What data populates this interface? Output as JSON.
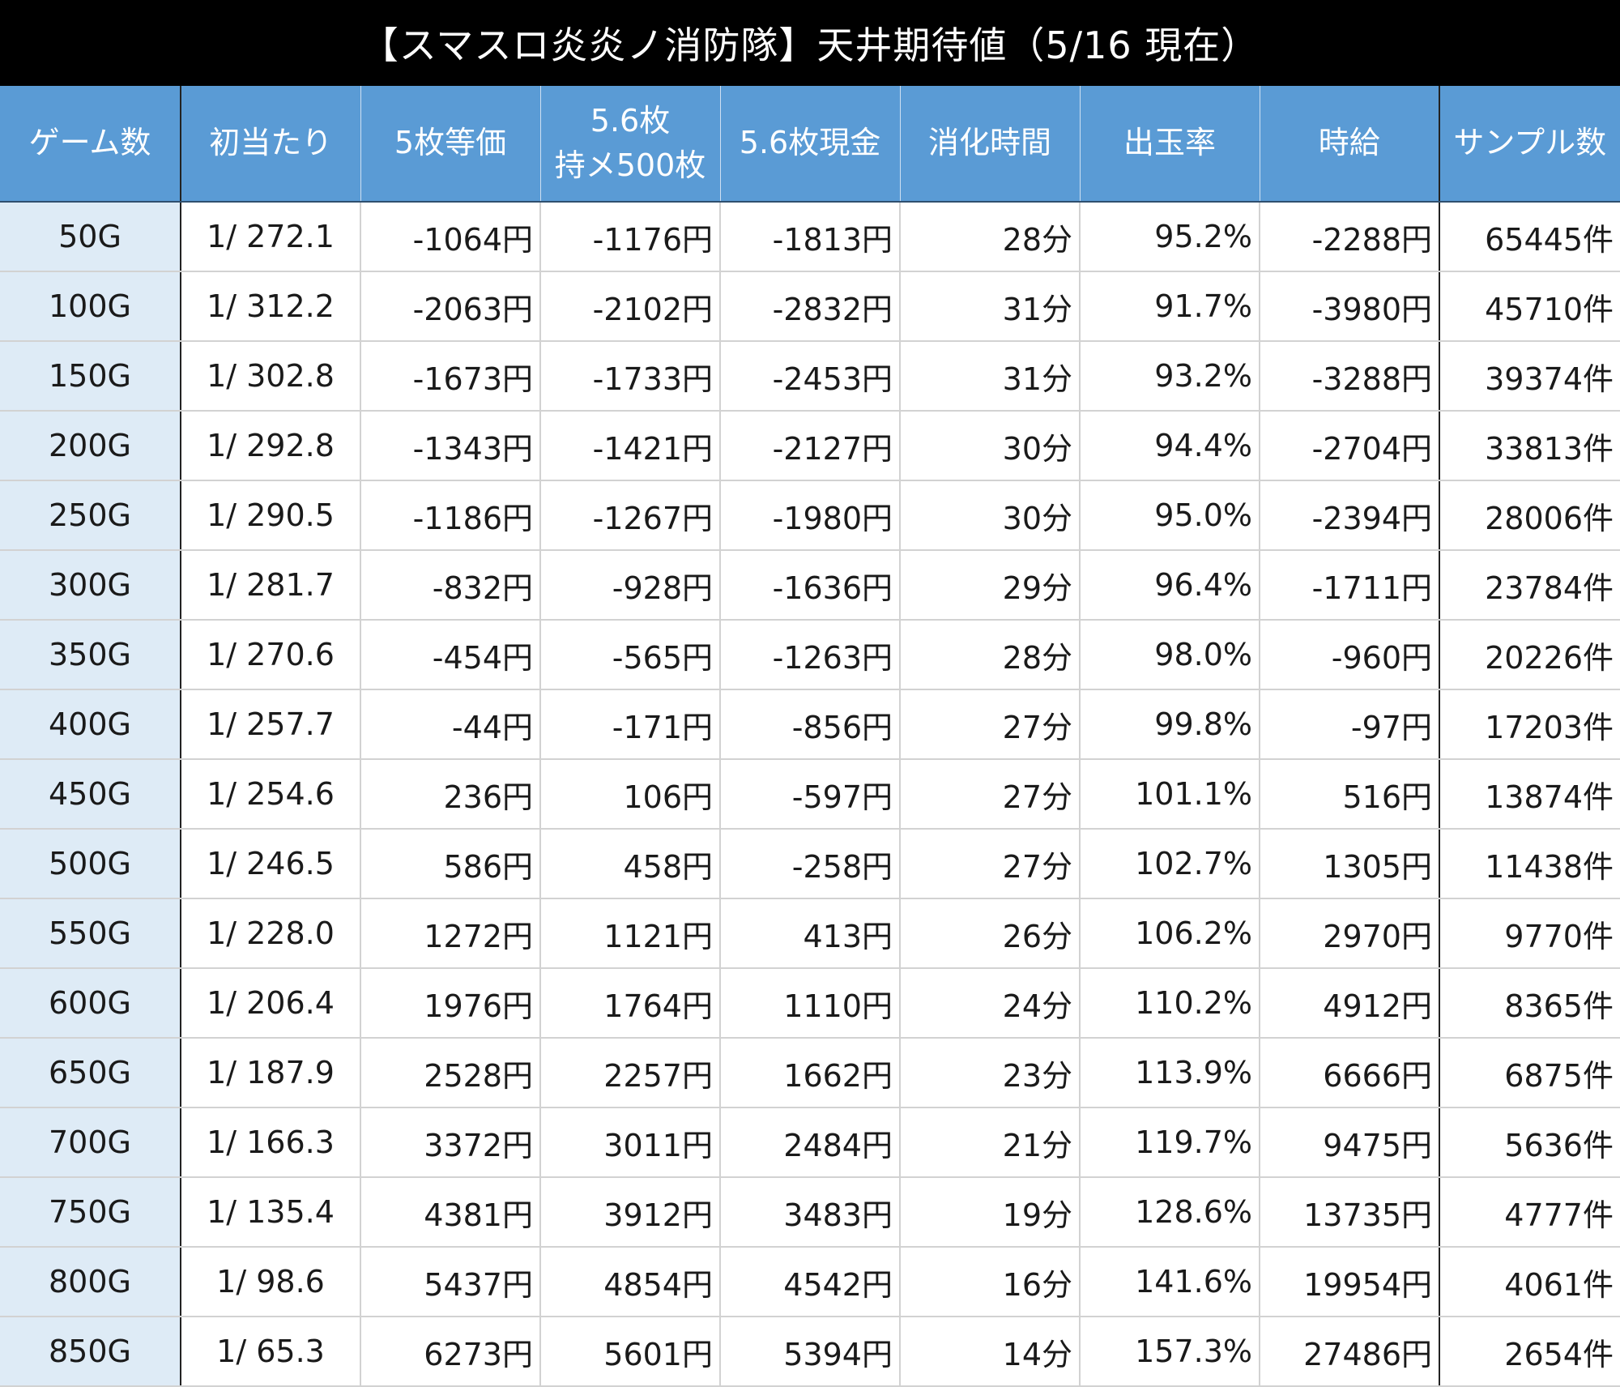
{
  "title": "【スマスロ炎炎ノ消防隊】天井期待値（5/16 現在）",
  "headers": {
    "games": "ゲーム数",
    "first_hit": "初当たり",
    "ev_5": "5枚等価",
    "ev_56_line1": "5.6枚",
    "ev_56_line2": "持メ500枚",
    "ev_56_cash": "5.6枚現金",
    "time": "消化時間",
    "payout": "出玉率",
    "hourly": "時給",
    "samples": "サンプル数"
  },
  "colors": {
    "negative": "#e8151b",
    "positive": "#1a22cc",
    "header_bg": "#5a9bd5",
    "game_col_bg": "#deebf6"
  },
  "rows": [
    {
      "games": "50G",
      "first_hit": "1/ 272.1",
      "ev5": "-1064円",
      "ev56": "-1176円",
      "ev56c": "-1813円",
      "time": "28分",
      "payout": "95.2%",
      "hourly": "-2288円",
      "samples": "65445件"
    },
    {
      "games": "100G",
      "first_hit": "1/ 312.2",
      "ev5": "-2063円",
      "ev56": "-2102円",
      "ev56c": "-2832円",
      "time": "31分",
      "payout": "91.7%",
      "hourly": "-3980円",
      "samples": "45710件"
    },
    {
      "games": "150G",
      "first_hit": "1/ 302.8",
      "ev5": "-1673円",
      "ev56": "-1733円",
      "ev56c": "-2453円",
      "time": "31分",
      "payout": "93.2%",
      "hourly": "-3288円",
      "samples": "39374件"
    },
    {
      "games": "200G",
      "first_hit": "1/ 292.8",
      "ev5": "-1343円",
      "ev56": "-1421円",
      "ev56c": "-2127円",
      "time": "30分",
      "payout": "94.4%",
      "hourly": "-2704円",
      "samples": "33813件"
    },
    {
      "games": "250G",
      "first_hit": "1/ 290.5",
      "ev5": "-1186円",
      "ev56": "-1267円",
      "ev56c": "-1980円",
      "time": "30分",
      "payout": "95.0%",
      "hourly": "-2394円",
      "samples": "28006件"
    },
    {
      "games": "300G",
      "first_hit": "1/ 281.7",
      "ev5": "-832円",
      "ev56": "-928円",
      "ev56c": "-1636円",
      "time": "29分",
      "payout": "96.4%",
      "hourly": "-1711円",
      "samples": "23784件"
    },
    {
      "games": "350G",
      "first_hit": "1/ 270.6",
      "ev5": "-454円",
      "ev56": "-565円",
      "ev56c": "-1263円",
      "time": "28分",
      "payout": "98.0%",
      "hourly": "-960円",
      "samples": "20226件"
    },
    {
      "games": "400G",
      "first_hit": "1/ 257.7",
      "ev5": "-44円",
      "ev56": "-171円",
      "ev56c": "-856円",
      "time": "27分",
      "payout": "99.8%",
      "hourly": "-97円",
      "samples": "17203件"
    },
    {
      "games": "450G",
      "first_hit": "1/ 254.6",
      "ev5": "236円",
      "ev56": "106円",
      "ev56c": "-597円",
      "time": "27分",
      "payout": "101.1%",
      "hourly": "516円",
      "samples": "13874件"
    },
    {
      "games": "500G",
      "first_hit": "1/ 246.5",
      "ev5": "586円",
      "ev56": "458円",
      "ev56c": "-258円",
      "time": "27分",
      "payout": "102.7%",
      "hourly": "1305円",
      "samples": "11438件"
    },
    {
      "games": "550G",
      "first_hit": "1/ 228.0",
      "ev5": "1272円",
      "ev56": "1121円",
      "ev56c": "413円",
      "time": "26分",
      "payout": "106.2%",
      "hourly": "2970円",
      "samples": "9770件"
    },
    {
      "games": "600G",
      "first_hit": "1/ 206.4",
      "ev5": "1976円",
      "ev56": "1764円",
      "ev56c": "1110円",
      "time": "24分",
      "payout": "110.2%",
      "hourly": "4912円",
      "samples": "8365件"
    },
    {
      "games": "650G",
      "first_hit": "1/ 187.9",
      "ev5": "2528円",
      "ev56": "2257円",
      "ev56c": "1662円",
      "time": "23分",
      "payout": "113.9%",
      "hourly": "6666円",
      "samples": "6875件"
    },
    {
      "games": "700G",
      "first_hit": "1/ 166.3",
      "ev5": "3372円",
      "ev56": "3011円",
      "ev56c": "2484円",
      "time": "21分",
      "payout": "119.7%",
      "hourly": "9475円",
      "samples": "5636件"
    },
    {
      "games": "750G",
      "first_hit": "1/ 135.4",
      "ev5": "4381円",
      "ev56": "3912円",
      "ev56c": "3483円",
      "time": "19分",
      "payout": "128.6%",
      "hourly": "13735円",
      "samples": "4777件"
    },
    {
      "games": "800G",
      "first_hit": "1/ 98.6",
      "ev5": "5437円",
      "ev56": "4854円",
      "ev56c": "4542円",
      "time": "16分",
      "payout": "141.6%",
      "hourly": "19954円",
      "samples": "4061件"
    },
    {
      "games": "850G",
      "first_hit": "1/ 65.3",
      "ev5": "6273円",
      "ev56": "5601円",
      "ev56c": "5394円",
      "time": "14分",
      "payout": "157.3%",
      "hourly": "27486円",
      "samples": "2654件"
    }
  ]
}
